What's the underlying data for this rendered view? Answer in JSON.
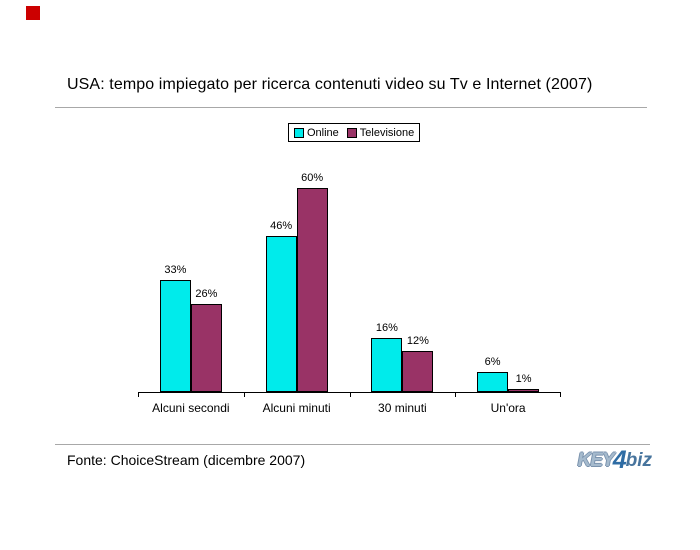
{
  "decor": {
    "corner_square_color": "#cc0000"
  },
  "chart_data": {
    "type": "bar",
    "title": "USA: tempo impiegato per ricerca contenuti video su Tv e Internet (2007)",
    "categories": [
      "Alcuni secondi",
      "Alcuni minuti",
      "30 minuti",
      "Un'ora"
    ],
    "series": [
      {
        "name": "Online",
        "color": "#00ebeb",
        "values": [
          33,
          46,
          16,
          6
        ]
      },
      {
        "name": "Televisione",
        "color": "#993366",
        "values": [
          26,
          60,
          12,
          1
        ]
      }
    ],
    "value_suffix": "%",
    "data_labels": true,
    "xlabel": "",
    "ylabel": "",
    "ylim": [
      0,
      65
    ],
    "grid": false,
    "legend_position": "top-center",
    "bar_border_color": "#000000"
  },
  "footer": {
    "source": "Fonte: ChoiceStream (dicembre 2007)"
  },
  "logo": {
    "key": "KEY",
    "four": "4",
    "biz": "biz"
  }
}
